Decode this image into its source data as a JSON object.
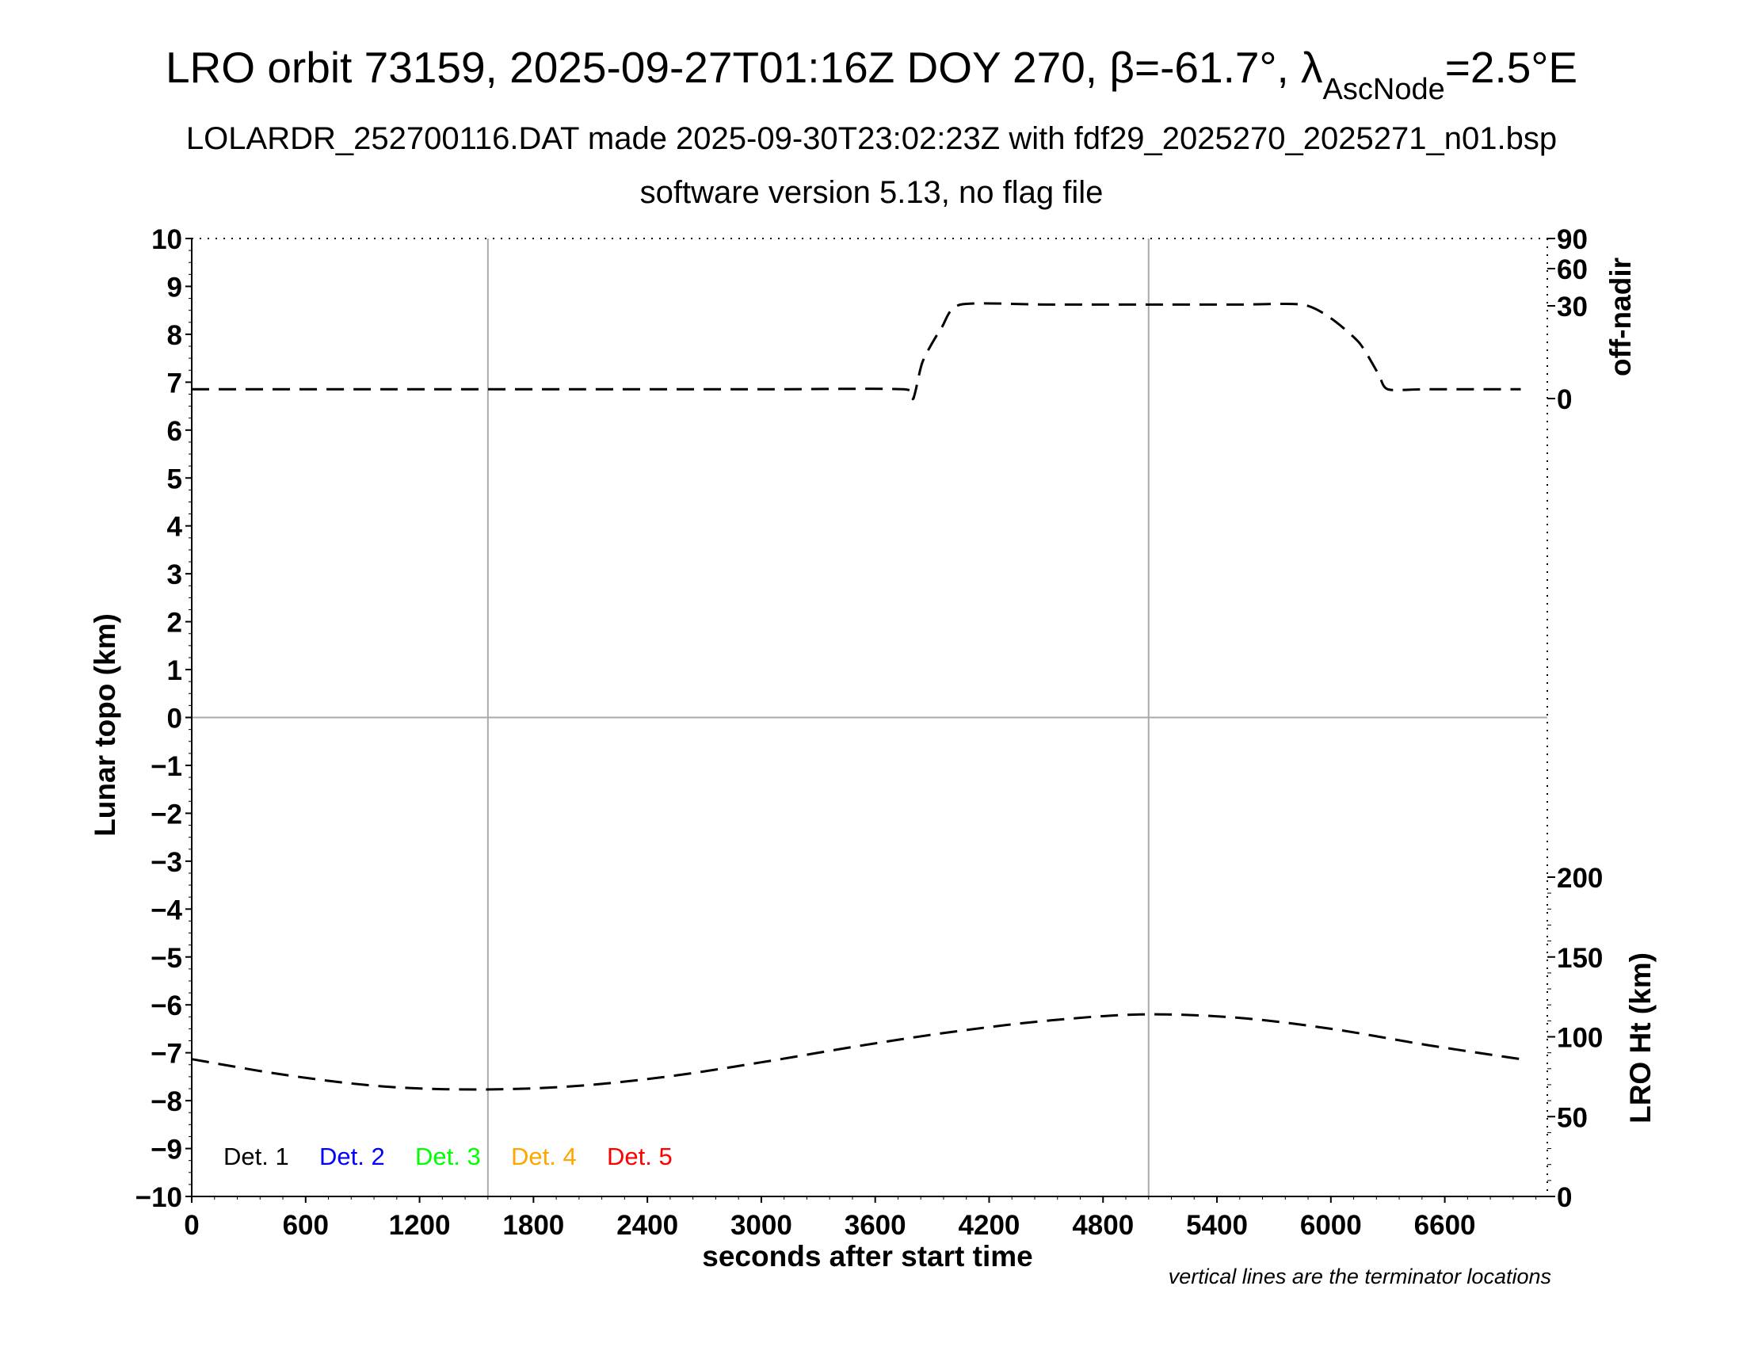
{
  "chart_data": {
    "type": "line",
    "title": "LRO orbit 73159, 2025-09-27T01:16Z DOY 270, ",
    "title_beta": "β=-61.7°, ",
    "title_lambda": "λ",
    "title_lambda_sub": "AscNode",
    "title_lambda_val": "=2.5°E",
    "subtitle1": "LOLARDR_252700116.DAT made 2025-09-30T23:02:23Z with fdf29_2025270_2025271_n01.bsp",
    "subtitle2": "software version 5.13, no flag file",
    "xlabel": "seconds after start time",
    "ylabel": "Lunar topo (km)",
    "y2label_top": "off-nadir",
    "y2label_bottom": "LRO Ht (km)",
    "note": "vertical lines are the terminator locations",
    "xlim": [
      0,
      7140
    ],
    "ylim": [
      -10,
      10
    ],
    "x_ticks": [
      0,
      600,
      1200,
      1800,
      2400,
      3000,
      3600,
      4200,
      4800,
      5400,
      6000,
      6600
    ],
    "x_tick_labels": [
      "0",
      "600",
      "1200",
      "1800",
      "2400",
      "3000",
      "3600",
      "4200",
      "4800",
      "5400",
      "6000",
      "6600"
    ],
    "y_ticks": [
      -10,
      -9,
      -8,
      -7,
      -6,
      -5,
      -4,
      -3,
      -2,
      -1,
      0,
      1,
      2,
      3,
      4,
      5,
      6,
      7,
      8,
      9,
      10
    ],
    "y_tick_labels": [
      "−10",
      "−9",
      "−8",
      "−7",
      "−6",
      "−5",
      "−4",
      "−3",
      "−2",
      "−1",
      "0",
      "1",
      "2",
      "3",
      "4",
      "5",
      "6",
      "7",
      "8",
      "9",
      "10"
    ],
    "offnadir_ticks": [
      0,
      30,
      60,
      90
    ],
    "offnadir_tick_labels": [
      "0",
      "30",
      "60",
      "90"
    ],
    "height_ticks": [
      0,
      50,
      100,
      150,
      200
    ],
    "height_tick_labels": [
      "0",
      "50",
      "100",
      "150",
      "200"
    ],
    "terminators": [
      1560,
      5040
    ],
    "legend": [
      {
        "label": "Det. 1",
        "color": "#000000"
      },
      {
        "label": "Det. 2",
        "color": "#0000ff"
      },
      {
        "label": "Det. 3",
        "color": "#00ff00"
      },
      {
        "label": "Det. 4",
        "color": "#ffa500"
      },
      {
        "label": "Det. 5",
        "color": "#ff0000"
      }
    ],
    "series": [
      {
        "name": "off-nadir",
        "axis": "off-nadir",
        "x": [
          0,
          1000,
          2000,
          3000,
          3750,
          3800,
          3850,
          3950,
          4050,
          4500,
          5000,
          5500,
          5850,
          6000,
          6150,
          6250,
          6300,
          6500,
          7000
        ],
        "y": [
          3,
          3,
          3,
          3,
          3,
          0,
          12,
          23,
          31,
          31,
          31,
          31,
          31,
          26,
          18,
          8,
          3,
          3,
          3
        ]
      },
      {
        "name": "LRO Ht",
        "axis": "LRO Ht (km)",
        "x": [
          0,
          500,
          1000,
          1500,
          2000,
          2500,
          3000,
          3500,
          4000,
          4500,
          5000,
          5500,
          6000,
          6500,
          7000
        ],
        "y": [
          86,
          76,
          69,
          67,
          69,
          75,
          84,
          94,
          103,
          110,
          114,
          112,
          105,
          95,
          86
        ]
      }
    ]
  }
}
